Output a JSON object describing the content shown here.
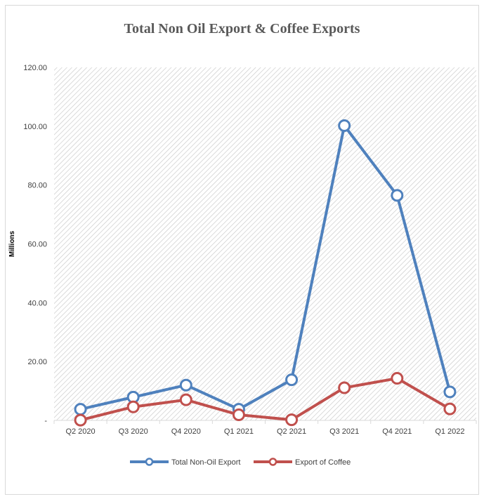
{
  "chart_data": {
    "type": "line",
    "title": "Total Non Oil Export & Coffee Exports",
    "ylabel": "Millions",
    "xlabel": "",
    "categories": [
      "Q2 2020",
      "Q3 2020",
      "Q4 2020",
      "Q1 2021",
      "Q2 2021",
      "Q3 2021",
      "Q4 2021",
      "Q1 2022"
    ],
    "ylim": [
      0,
      120
    ],
    "yticks": [
      0,
      20,
      40,
      60,
      80,
      100,
      120
    ],
    "ytick_labels": [
      "-",
      "20.00",
      "40.00",
      "60.00",
      "80.00",
      "100.00",
      "120.00"
    ],
    "series": [
      {
        "name": "Total Non-Oil Export",
        "color": "#4f81bd",
        "values": [
          3.8,
          7.9,
          12.0,
          3.8,
          13.8,
          100.2,
          76.5,
          9.7
        ]
      },
      {
        "name": "Export of Coffee",
        "color": "#c0504d",
        "values": [
          0.1,
          4.6,
          7.0,
          1.9,
          0.2,
          11.1,
          14.3,
          3.9
        ]
      }
    ],
    "grid": false,
    "plot_background": "hatched",
    "legend_position": "bottom"
  }
}
